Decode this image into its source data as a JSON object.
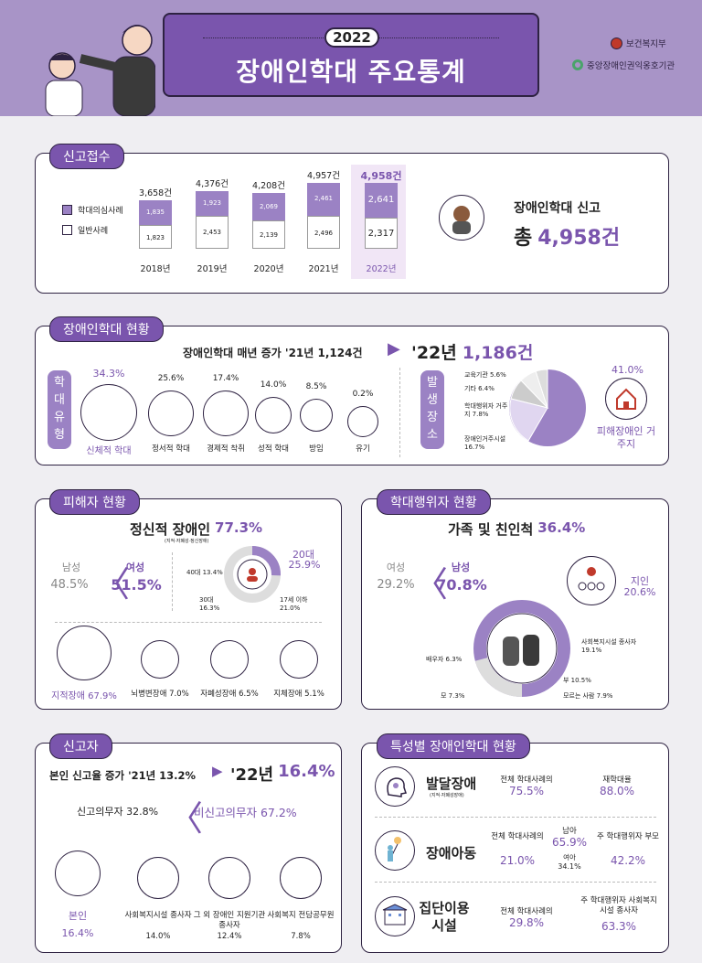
{
  "header": {
    "year": "2022",
    "title": "장애인학대 주요통계",
    "org1": "보건복지부",
    "org2": "중앙장애인권익옹호기관"
  },
  "reports": {
    "tag": "신고접수",
    "legend_abuse": "학대의심사례",
    "legend_general": "일반사례",
    "bars": [
      {
        "year": "2018년",
        "total": "3,658건",
        "abuse": "1,835",
        "general": "1,823"
      },
      {
        "year": "2019년",
        "total": "4,376건",
        "abuse": "1,923",
        "general": "2,453"
      },
      {
        "year": "2020년",
        "total": "4,208건",
        "abuse": "2,069",
        "general": "2,139"
      },
      {
        "year": "2021년",
        "total": "4,957건",
        "abuse": "2,461",
        "general": "2,496"
      },
      {
        "year": "2022년",
        "total": "4,958건",
        "abuse": "2,641",
        "general": "2,317"
      }
    ],
    "summary_label": "장애인학대 신고",
    "summary_prefix": "총",
    "summary_value": "4,958건"
  },
  "status": {
    "tag": "장애인학대 현황",
    "trend_label": "장애인학대 매년 증가 '21년 1,124건",
    "trend_value_a": "'22년",
    "trend_value_b": "1,186건",
    "type_tag": [
      "학",
      "대",
      "유",
      "형"
    ],
    "types": [
      {
        "pct": "34.3%",
        "label": "신체적 학대"
      },
      {
        "pct": "25.6%",
        "label": "정서적 학대"
      },
      {
        "pct": "17.4%",
        "label": "경제적 착취"
      },
      {
        "pct": "14.0%",
        "label": "성적 학대"
      },
      {
        "pct": "8.5%",
        "label": "방임"
      },
      {
        "pct": "0.2%",
        "label": "유기"
      }
    ],
    "place_tag": [
      "발",
      "생",
      "장",
      "소"
    ],
    "places": {
      "edu": "교육기관 5.6%",
      "etc": "기타 6.4%",
      "abuser_home": "학대행위자 거주지 7.8%",
      "disabled_facility": "장애인거주시설 16.7%"
    },
    "main_place_pct": "41.0%",
    "main_place_label": "피해장애인 거주지"
  },
  "victim": {
    "tag": "피해자 현황",
    "title": "정신적 장애인",
    "title_pct": "77.3%",
    "note": "(지적·자폐성·정신장애)",
    "male_label": "남성",
    "male_pct": "48.5%",
    "female_label": "여성",
    "female_pct": "51.5%",
    "ages": {
      "a40": "40대 13.4%",
      "a20": "20대",
      "a20_pct": "25.9%",
      "a30": "30대 16.3%",
      "a17": "17세 이하 21.0%"
    },
    "disabilities": [
      {
        "label": "지적장애 67.9%"
      },
      {
        "label": "뇌병변장애 7.0%"
      },
      {
        "label": "자폐성장애 6.5%"
      },
      {
        "label": "지체장애 5.1%"
      }
    ]
  },
  "abuser": {
    "tag": "학대행위자 현황",
    "title": "가족 및 친인척",
    "title_pct": "36.4%",
    "female_label": "여성",
    "female_pct": "29.2%",
    "male_label": "남성",
    "male_pct": "70.8%",
    "acq_label": "지인",
    "acq_pct": "20.6%",
    "spouse": "배우자 6.3%",
    "mother": "모 7.3%",
    "father": "부 10.5%",
    "unknown": "모르는 사람 7.9%",
    "social_worker": "사회복지시설 종사자 19.1%"
  },
  "reporter": {
    "tag": "신고자",
    "headline": "본인 신고율 증가 '21년 13.2%",
    "headline_a": "'22년",
    "headline_b": "16.4%",
    "mandatory": "신고의무자 32.8%",
    "nonmandatory": "비신고의무자 67.2%",
    "items": [
      {
        "label": "본인",
        "pct": "16.4%"
      },
      {
        "label": "사회복지시설 종사자",
        "pct": "14.0%"
      },
      {
        "label": "그 외 장애인 지원기관 종사자",
        "pct": "12.4%"
      },
      {
        "label": "사회복지 전담공무원",
        "pct": "7.8%"
      }
    ]
  },
  "special": {
    "tag": "특성별 장애인학대 현황",
    "dev_title": "발달장애",
    "dev_note": "(지적·자폐성장애)",
    "dev_c1_label": "전체 학대사례의",
    "dev_c1_value": "75.5%",
    "dev_c2_label": "재학대율",
    "dev_c2_value": "88.0%",
    "child_title": "장애아동",
    "child_c1_label": "전체 학대사례의",
    "child_c1_value": "21.0%",
    "child_boy_label": "남아",
    "child_boy_value": "65.9%",
    "child_girl_label": "여아",
    "child_girl_value": "34.1%",
    "child_c3_label": "주 학대행위자 부모",
    "child_c3_value": "42.2%",
    "group_title": "집단이용 시설",
    "group_c1_label": "전체 학대사례의",
    "group_c1_value": "29.8%",
    "group_c2_label": "주 학대행위자 사회복지시설 종사자",
    "group_c2_value": "63.3%"
  }
}
